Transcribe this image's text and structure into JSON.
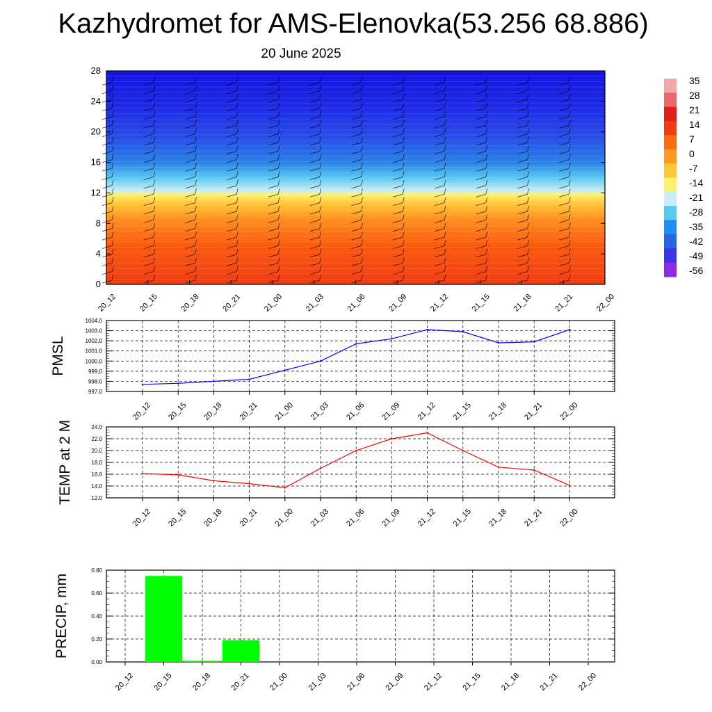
{
  "page": {
    "title": "Kazhydromet for AMS-Elenovka(53.256 68.886)",
    "subtitle": "20 June 2025"
  },
  "time_labels": [
    "20_12",
    "20_15",
    "20_18",
    "20_21",
    "21_00",
    "21_03",
    "21_06",
    "21_09",
    "21_12",
    "21_15",
    "21_18",
    "21_21",
    "22_00"
  ],
  "chart_data": [
    {
      "type": "heatmap",
      "title": "",
      "x": [
        "20_12",
        "20_15",
        "20_18",
        "20_21",
        "21_00",
        "21_03",
        "21_06",
        "21_09",
        "21_12",
        "21_15",
        "21_18",
        "21_21",
        "22_00"
      ],
      "y_ticks": [
        0,
        4,
        8,
        12,
        16,
        20,
        24,
        28
      ],
      "ylim": [
        0,
        28
      ],
      "colorbar_labels": [
        "35",
        "28",
        "21",
        "14",
        "7",
        "0",
        "-7",
        "-14",
        "-21",
        "-28",
        "-35",
        "-42",
        "-49",
        "-56"
      ],
      "colorbar_colors": [
        "#f2a8a8",
        "#e86a6a",
        "#e01e1e",
        "#f03c14",
        "#fa6e0f",
        "#ff9a1e",
        "#ffc83c",
        "#fff06e",
        "#c8ecf8",
        "#5ac8f0",
        "#1e8cf0",
        "#2864e6",
        "#3c32e6",
        "#8c2ce6"
      ],
      "description_of_levels": [
        "0-12 warm",
        "12-16 transition",
        "16-28 cold"
      ]
    },
    {
      "type": "line",
      "ylabel": "PMSL",
      "x": [
        "20_12",
        "20_15",
        "20_18",
        "20_21",
        "21_00",
        "21_03",
        "21_06",
        "21_09",
        "21_12",
        "21_15",
        "21_18",
        "21_21",
        "22_00"
      ],
      "values": [
        997.7,
        997.8,
        998.0,
        998.2,
        999.1,
        1000.0,
        1001.7,
        1002.2,
        1003.1,
        1002.9,
        1001.8,
        1001.9,
        1003.1
      ],
      "ylim": [
        997.0,
        1004.0
      ],
      "y_ticks": [
        "997.0",
        "998.0",
        "999.0",
        "1000.0",
        "1001.0",
        "1002.0",
        "1003.0",
        "1004.0"
      ],
      "color": "#0000ff"
    },
    {
      "type": "line",
      "ylabel": "TEMP at 2 M",
      "x": [
        "20_12",
        "20_15",
        "20_18",
        "20_21",
        "21_00",
        "21_03",
        "21_06",
        "21_09",
        "21_12",
        "21_15",
        "21_18",
        "21_21",
        "22_00"
      ],
      "values": [
        16.1,
        15.9,
        14.9,
        14.4,
        13.7,
        17.0,
        20.0,
        22.0,
        23.0,
        20.0,
        17.2,
        16.7,
        14.1
      ],
      "ylim": [
        12.0,
        24.0
      ],
      "y_ticks": [
        "12.0",
        "14.0",
        "16.0",
        "18.0",
        "20.0",
        "22.0",
        "24.0"
      ],
      "color": "#ff0000"
    },
    {
      "type": "bar",
      "ylabel": "PRECIP, mm",
      "categories": [
        "20_12",
        "20_15",
        "20_18",
        "20_21",
        "21_00",
        "21_03",
        "21_06",
        "21_09",
        "21_12",
        "21_15",
        "21_18",
        "21_21",
        "22_00"
      ],
      "values": [
        0,
        0.75,
        0.01,
        0.19,
        0,
        0,
        0,
        0,
        0,
        0,
        0,
        0,
        0
      ],
      "ylim": [
        0,
        0.8
      ],
      "y_ticks": [
        "0.00",
        "0.20",
        "0.40",
        "0.60",
        "0.80"
      ],
      "color": "#00ff00"
    }
  ]
}
